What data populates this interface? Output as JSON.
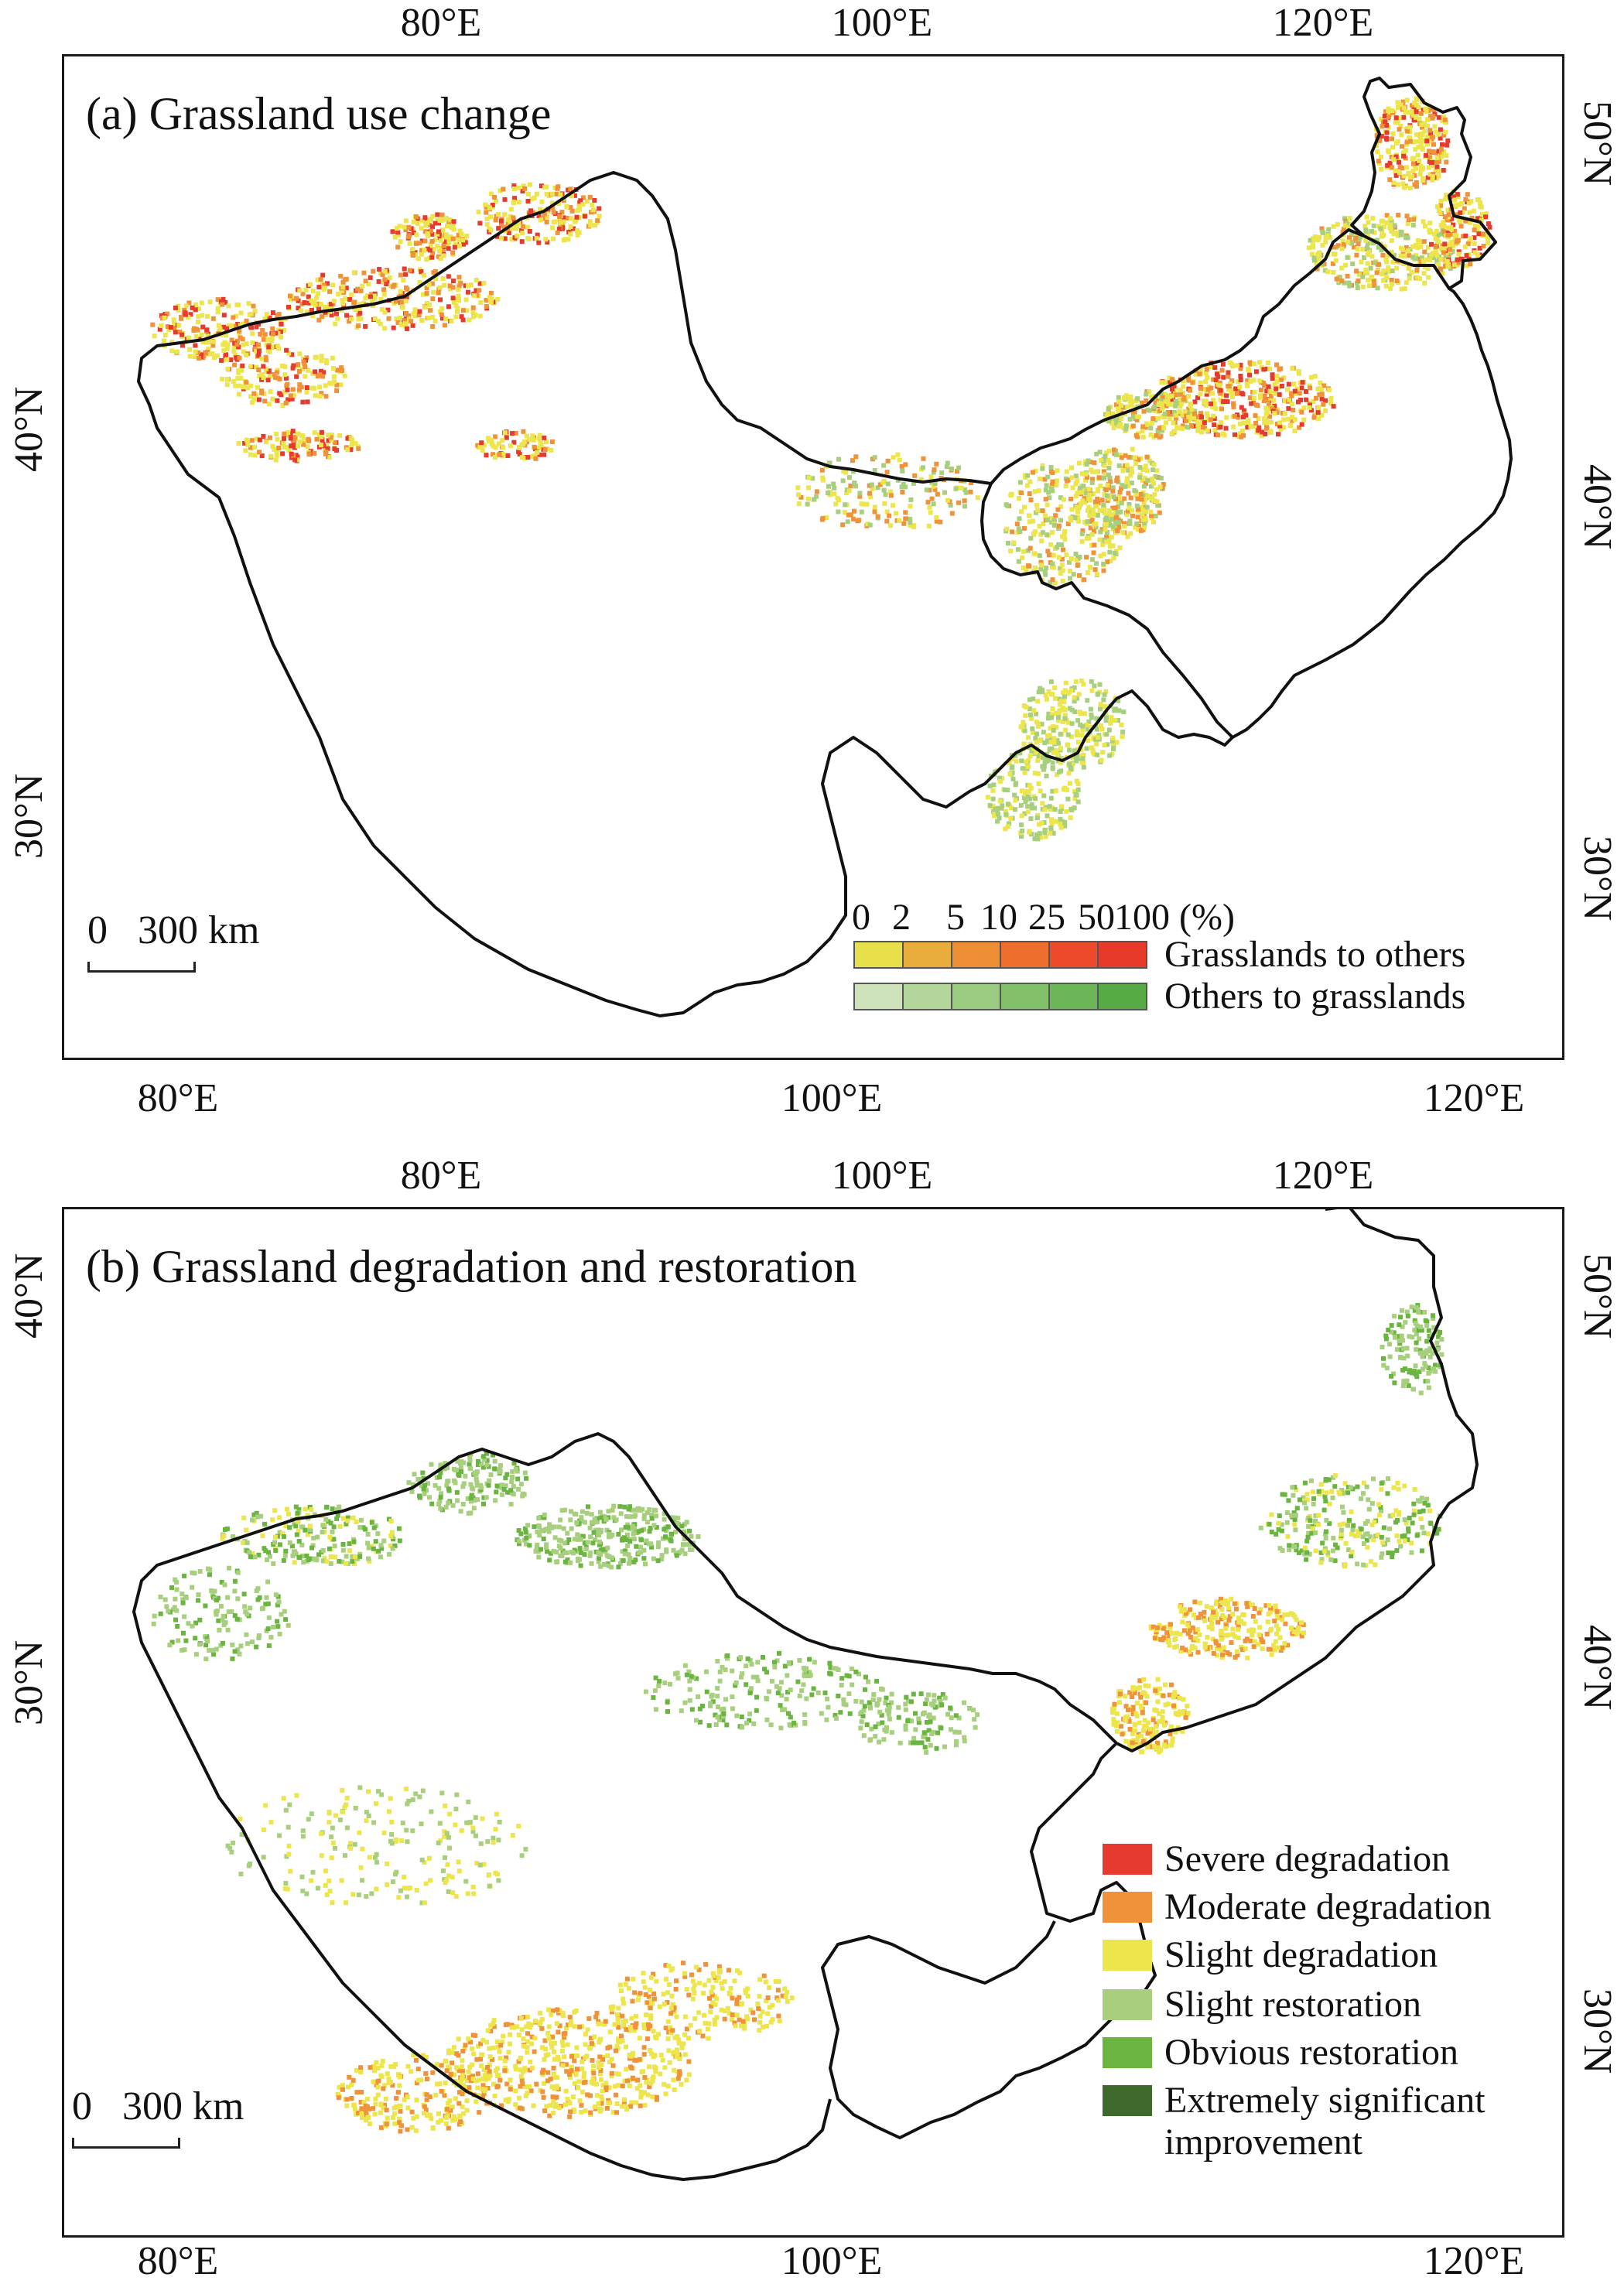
{
  "panel_a": {
    "title": "(a) Grassland use change",
    "top_ticks": [
      "80°E",
      "100°E",
      "120°E"
    ],
    "bottom_ticks": [
      "80°E",
      "100°E",
      "120°E"
    ],
    "left_ticks": [
      "40°N",
      "30°N"
    ],
    "right_ticks": [
      "50°N",
      "40°N",
      "30°N"
    ],
    "scale_label": "0   300 km",
    "legend": {
      "breaks": [
        "0",
        "2",
        "5",
        "10",
        "25",
        "50",
        "100 (%)"
      ],
      "row1_label": "Grasslands to others",
      "row2_label": "Others to grasslands",
      "row1_colors": [
        "#e8e04a",
        "#e8ad3c",
        "#ed8e34",
        "#ee6f2d",
        "#ec4a2a",
        "#e83a2a"
      ],
      "row2_colors": [
        "#cde2b8",
        "#b4d69a",
        "#9bcb80",
        "#83c06a",
        "#6cb658",
        "#56ab45"
      ]
    }
  },
  "panel_b": {
    "title": "(b) Grassland degradation and restoration",
    "top_ticks": [
      "80°E",
      "100°E",
      "120°E"
    ],
    "bottom_ticks": [
      "80°E",
      "100°E",
      "120°E"
    ],
    "left_ticks": [
      "40°N",
      "30°N"
    ],
    "right_ticks": [
      "50°N",
      "40°N",
      "30°N"
    ],
    "scale_label": "0   300 km",
    "legend": [
      {
        "label": "Severe degradation",
        "color": "#e63a2e"
      },
      {
        "label": "Moderate degradation",
        "color": "#f0923a"
      },
      {
        "label": "Slight degradation",
        "color": "#ece54c"
      },
      {
        "label": "Slight restoration",
        "color": "#a7cf7e"
      },
      {
        "label": "Obvious restoration",
        "color": "#6ab440"
      },
      {
        "label": "Extremely significant",
        "color": "#3e6b2c"
      },
      {
        "label": "improvement",
        "color": ""
      }
    ]
  },
  "colors": {
    "boundary": "#111111",
    "deg_slight": "#ece54c",
    "deg_moderate": "#f0923a",
    "deg_severe": "#e63a2e",
    "res_slight": "#a7cf7e",
    "res_obvious": "#6ab440"
  }
}
